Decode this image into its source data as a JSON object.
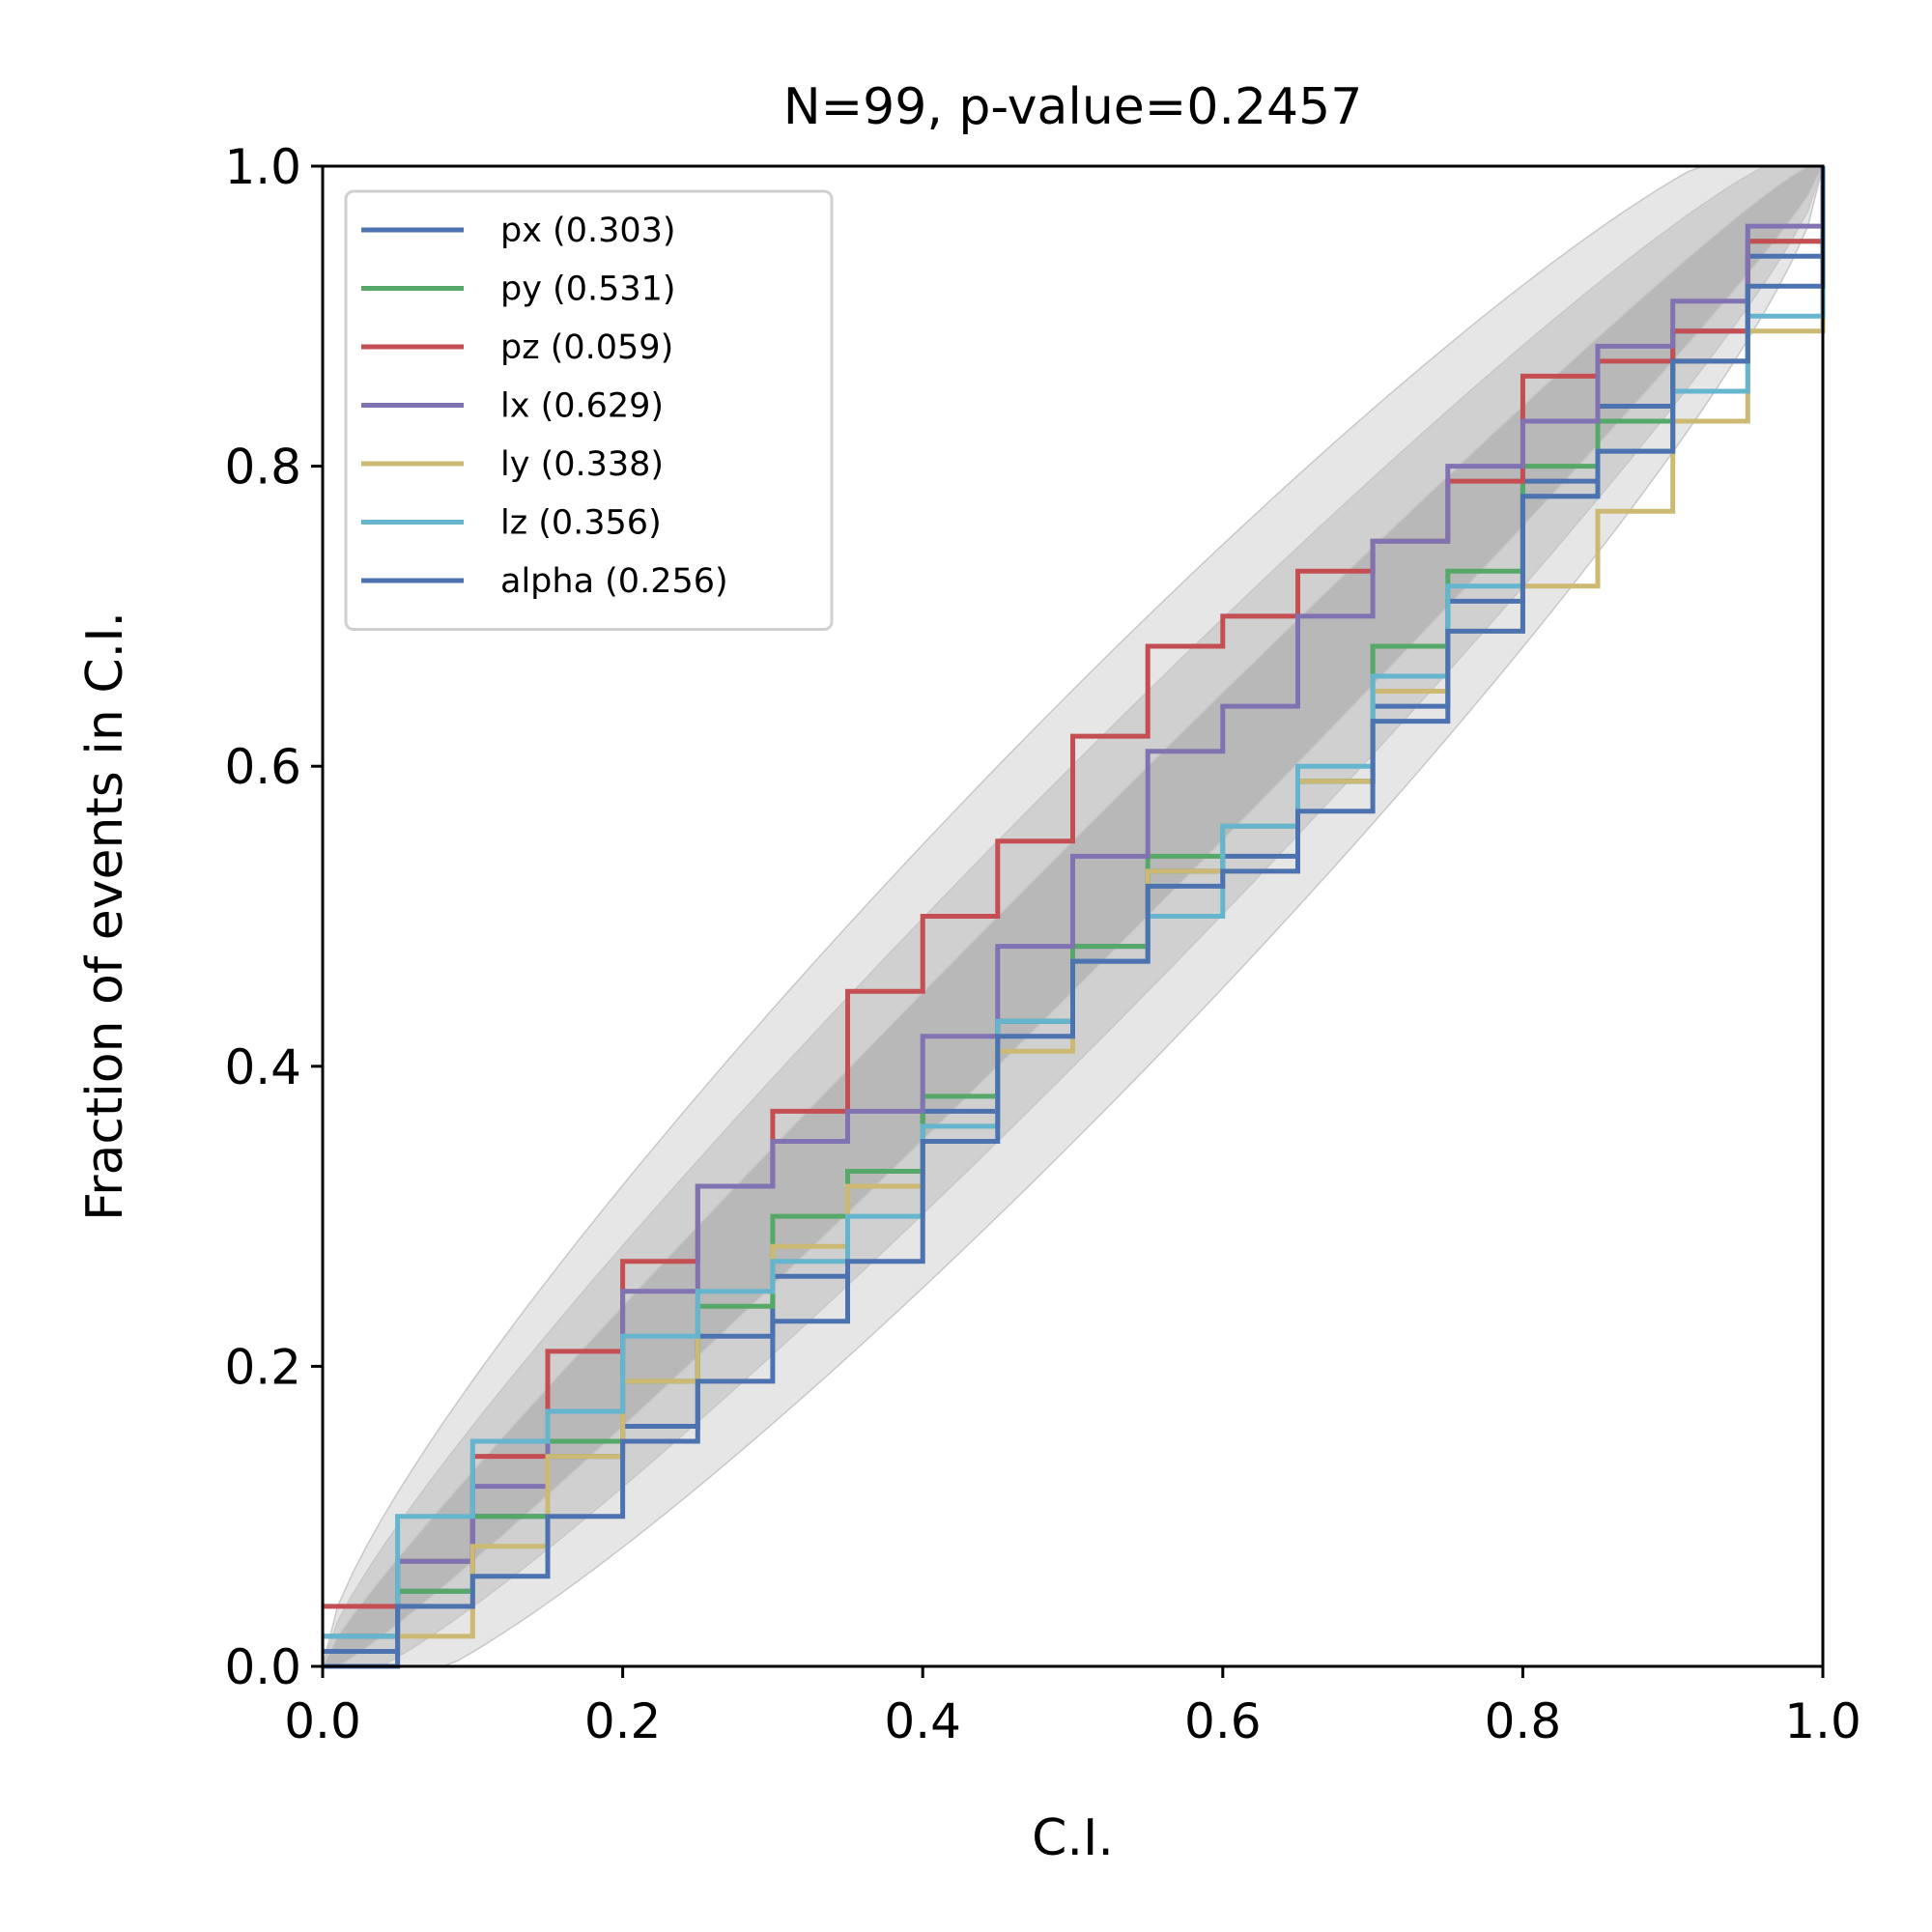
{
  "chart_data": {
    "type": "line",
    "title": "N=99, p-value=0.2457",
    "xlabel": "C.I.",
    "ylabel": "Fraction of events in C.I.",
    "xlim": [
      0,
      1
    ],
    "ylim": [
      0,
      1
    ],
    "xticks": [
      "0.0",
      "0.2",
      "0.4",
      "0.6",
      "0.8",
      "1.0"
    ],
    "yticks": [
      "0.0",
      "0.2",
      "0.4",
      "0.6",
      "0.8",
      "1.0"
    ],
    "grid": false,
    "legend_position": "top-left",
    "confidence_bands": [
      {
        "level": "3-sigma",
        "color": "#e6e6e6"
      },
      {
        "level": "2-sigma",
        "color": "#d0d0d0"
      },
      {
        "level": "1-sigma",
        "color": "#b8b8b8"
      }
    ],
    "series": [
      {
        "name": "px (0.303)",
        "color": "#4c72b0",
        "x": [
          0,
          0.05,
          0.1,
          0.15,
          0.2,
          0.25,
          0.3,
          0.35,
          0.4,
          0.45,
          0.5,
          0.55,
          0.6,
          0.65,
          0.7,
          0.75,
          0.8,
          0.85,
          0.9,
          0.95,
          1.0
        ],
        "y": [
          0.01,
          0.05,
          0.1,
          0.14,
          0.16,
          0.22,
          0.26,
          0.32,
          0.37,
          0.43,
          0.48,
          0.53,
          0.54,
          0.59,
          0.64,
          0.71,
          0.79,
          0.84,
          0.89,
          0.94,
          1.0
        ]
      },
      {
        "name": "py (0.531)",
        "color": "#55a868",
        "x": [
          0,
          0.05,
          0.1,
          0.15,
          0.2,
          0.25,
          0.3,
          0.35,
          0.4,
          0.45,
          0.5,
          0.55,
          0.6,
          0.65,
          0.7,
          0.75,
          0.8,
          0.85,
          0.9,
          0.95,
          1.0
        ],
        "y": [
          0.02,
          0.05,
          0.1,
          0.15,
          0.19,
          0.24,
          0.3,
          0.33,
          0.38,
          0.43,
          0.48,
          0.54,
          0.56,
          0.59,
          0.68,
          0.73,
          0.8,
          0.83,
          0.87,
          0.95,
          1.0
        ]
      },
      {
        "name": "pz (0.059)",
        "color": "#c44e52",
        "x": [
          0,
          0.05,
          0.1,
          0.15,
          0.2,
          0.25,
          0.3,
          0.35,
          0.4,
          0.45,
          0.5,
          0.55,
          0.6,
          0.65,
          0.7,
          0.75,
          0.8,
          0.85,
          0.9,
          0.95,
          1.0
        ],
        "y": [
          0.04,
          0.07,
          0.14,
          0.21,
          0.27,
          0.32,
          0.37,
          0.45,
          0.5,
          0.55,
          0.62,
          0.68,
          0.7,
          0.73,
          0.75,
          0.79,
          0.86,
          0.87,
          0.89,
          0.95,
          1.0
        ]
      },
      {
        "name": "lx (0.629)",
        "color": "#8172b2",
        "x": [
          0,
          0.05,
          0.1,
          0.15,
          0.2,
          0.25,
          0.3,
          0.35,
          0.4,
          0.45,
          0.5,
          0.55,
          0.6,
          0.65,
          0.7,
          0.75,
          0.8,
          0.85,
          0.9,
          0.95,
          1.0
        ],
        "y": [
          0.02,
          0.07,
          0.12,
          0.17,
          0.25,
          0.32,
          0.35,
          0.37,
          0.42,
          0.48,
          0.54,
          0.61,
          0.64,
          0.7,
          0.75,
          0.8,
          0.83,
          0.88,
          0.91,
          0.96,
          1.0
        ]
      },
      {
        "name": "ly (0.338)",
        "color": "#ccb974",
        "x": [
          0,
          0.05,
          0.1,
          0.15,
          0.2,
          0.25,
          0.3,
          0.35,
          0.4,
          0.45,
          0.5,
          0.55,
          0.6,
          0.65,
          0.7,
          0.75,
          0.8,
          0.85,
          0.9,
          0.95,
          1.0
        ],
        "y": [
          0.0,
          0.02,
          0.08,
          0.14,
          0.19,
          0.25,
          0.28,
          0.32,
          0.36,
          0.41,
          0.47,
          0.53,
          0.56,
          0.59,
          0.65,
          0.69,
          0.72,
          0.77,
          0.83,
          0.89,
          0.97
        ]
      },
      {
        "name": "lz (0.356)",
        "color": "#64b5cd",
        "x": [
          0,
          0.05,
          0.1,
          0.15,
          0.2,
          0.25,
          0.3,
          0.35,
          0.4,
          0.45,
          0.5,
          0.55,
          0.6,
          0.65,
          0.7,
          0.75,
          0.8,
          0.85,
          0.9,
          0.95,
          1.0
        ],
        "y": [
          0.02,
          0.1,
          0.15,
          0.17,
          0.22,
          0.25,
          0.27,
          0.3,
          0.36,
          0.43,
          0.47,
          0.5,
          0.56,
          0.6,
          0.66,
          0.72,
          0.78,
          0.81,
          0.85,
          0.9,
          0.98
        ]
      },
      {
        "name": "alpha (0.256)",
        "color": "#4c72b0",
        "x": [
          0,
          0.05,
          0.1,
          0.15,
          0.2,
          0.25,
          0.3,
          0.35,
          0.4,
          0.45,
          0.5,
          0.55,
          0.6,
          0.65,
          0.7,
          0.75,
          0.8,
          0.85,
          0.9,
          0.95,
          1.0
        ],
        "y": [
          0.0,
          0.04,
          0.06,
          0.1,
          0.15,
          0.19,
          0.23,
          0.27,
          0.35,
          0.42,
          0.47,
          0.52,
          0.53,
          0.57,
          0.63,
          0.69,
          0.78,
          0.81,
          0.87,
          0.92,
          1.0
        ]
      }
    ]
  }
}
